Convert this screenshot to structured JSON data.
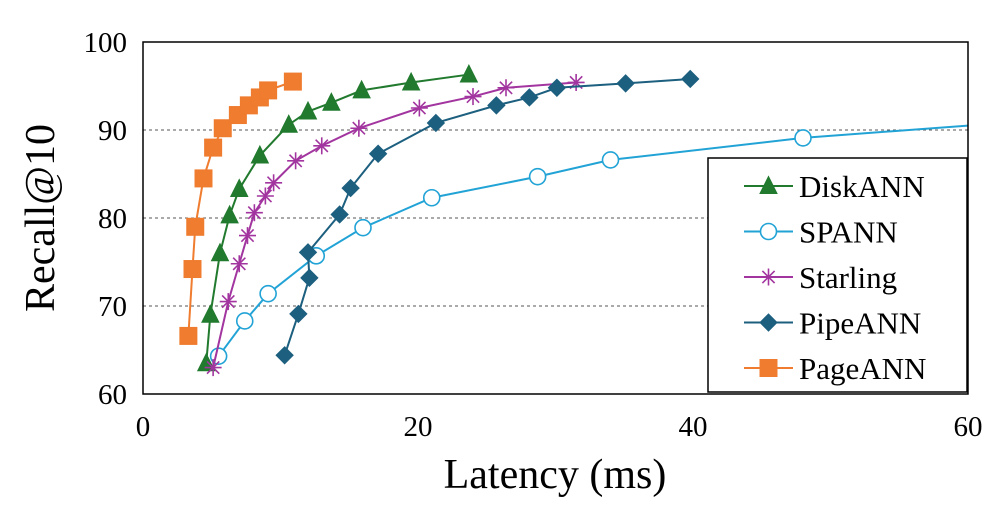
{
  "chart_data": {
    "type": "line",
    "title": "",
    "xlabel": "Latency (ms)",
    "ylabel": "Recall@10",
    "xlim": [
      0,
      60
    ],
    "ylim": [
      60,
      100
    ],
    "xticks": [
      0,
      20,
      40,
      60
    ],
    "yticks": [
      60,
      70,
      80,
      90,
      100
    ],
    "xtick_labels": [
      "0",
      "20",
      "40",
      "60"
    ],
    "ytick_labels": [
      "60",
      "70",
      "80",
      "90",
      "100"
    ],
    "grid": "horizontal dashed",
    "legend_position": "bottom-right",
    "series": [
      {
        "name": "DiskANN",
        "marker": "triangle",
        "color": "#217a2e",
        "points": [
          [
            4.6,
            63.5
          ],
          [
            4.9,
            69.0
          ],
          [
            5.6,
            76.0
          ],
          [
            6.3,
            80.3
          ],
          [
            7.0,
            83.3
          ],
          [
            8.5,
            87.1
          ],
          [
            10.6,
            90.6
          ],
          [
            12.0,
            92.1
          ],
          [
            13.7,
            93.1
          ],
          [
            15.9,
            94.5
          ],
          [
            19.5,
            95.4
          ],
          [
            23.7,
            96.3
          ]
        ]
      },
      {
        "name": "SPANN",
        "marker": "circle-open",
        "color": "#22a3d6",
        "points": [
          [
            5.5,
            64.3
          ],
          [
            7.4,
            68.3
          ],
          [
            9.1,
            71.4
          ],
          [
            12.6,
            75.7
          ],
          [
            16.0,
            78.9
          ],
          [
            21.0,
            82.3
          ],
          [
            28.7,
            84.7
          ],
          [
            34.0,
            86.6
          ],
          [
            48.0,
            89.1
          ],
          [
            60.0,
            90.5
          ]
        ]
      },
      {
        "name": "Starling",
        "marker": "star",
        "color": "#a2359f",
        "points": [
          [
            5.1,
            63.0
          ],
          [
            6.2,
            70.5
          ],
          [
            7.0,
            74.8
          ],
          [
            7.6,
            78.0
          ],
          [
            8.1,
            80.6
          ],
          [
            8.9,
            82.5
          ],
          [
            9.5,
            84.0
          ],
          [
            11.1,
            86.5
          ],
          [
            13.0,
            88.2
          ],
          [
            15.7,
            90.2
          ],
          [
            20.1,
            92.5
          ],
          [
            24.0,
            93.8
          ],
          [
            26.4,
            94.8
          ],
          [
            31.5,
            95.4
          ]
        ]
      },
      {
        "name": "PipeANN",
        "marker": "diamond",
        "color": "#1c5f7f",
        "points": [
          [
            10.3,
            64.4
          ],
          [
            11.3,
            69.1
          ],
          [
            12.1,
            73.2
          ],
          [
            12.0,
            76.1
          ],
          [
            14.3,
            80.4
          ],
          [
            15.1,
            83.4
          ],
          [
            17.1,
            87.3
          ],
          [
            21.3,
            90.8
          ],
          [
            25.7,
            92.8
          ],
          [
            28.1,
            93.7
          ],
          [
            30.1,
            94.8
          ],
          [
            35.1,
            95.3
          ],
          [
            39.8,
            95.8
          ]
        ]
      },
      {
        "name": "PageANN",
        "marker": "square",
        "color": "#ef7c2f",
        "points": [
          [
            3.3,
            66.6
          ],
          [
            3.6,
            74.2
          ],
          [
            3.8,
            79.0
          ],
          [
            4.4,
            84.5
          ],
          [
            5.1,
            88.0
          ],
          [
            5.8,
            90.2
          ],
          [
            6.9,
            91.7
          ],
          [
            7.7,
            92.8
          ],
          [
            8.5,
            93.7
          ],
          [
            9.1,
            94.5
          ],
          [
            10.9,
            95.5
          ]
        ]
      }
    ]
  }
}
